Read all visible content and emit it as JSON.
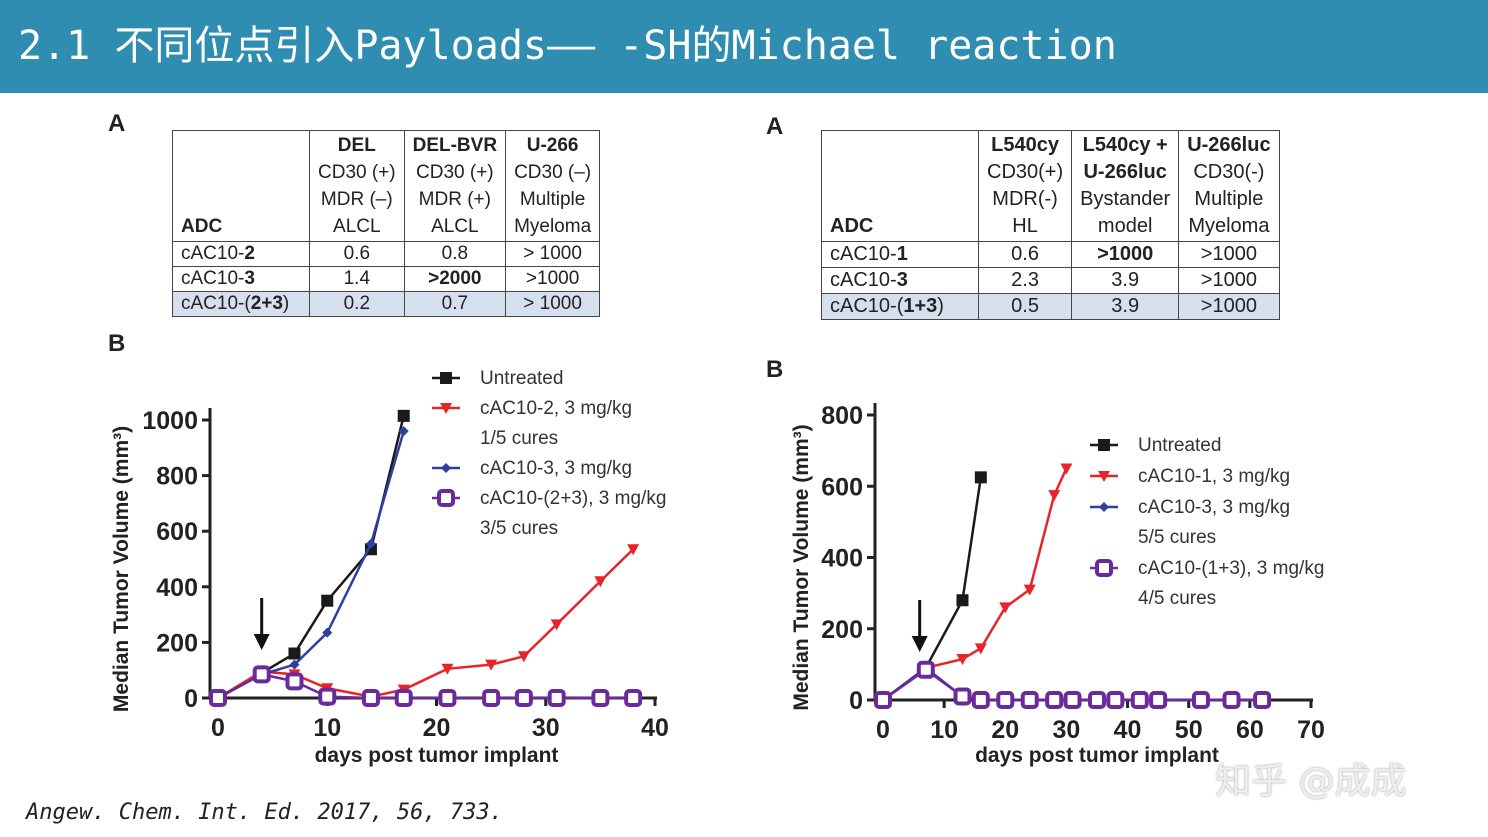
{
  "title": "2.1 不同位点引入Payloads—— -SH的Michael reaction",
  "citation": "Angew. Chem. Int. Ed. 2017, 56, 733.",
  "watermark": "知乎 @成成",
  "left": {
    "label_a": "A",
    "label_b": "B",
    "table": {
      "header": [
        "ADC",
        [
          "DEL",
          "CD30 (+)",
          "MDR (–)",
          "ALCL"
        ],
        [
          "DEL-BVR",
          "CD30 (+)",
          "MDR (+)",
          "ALCL"
        ],
        [
          "U-266",
          "CD30 (–)",
          "Multiple",
          "Myeloma"
        ]
      ],
      "rows": [
        [
          "cAC10-2",
          "0.6",
          "0.8",
          "> 1000"
        ],
        [
          "cAC10-3",
          "1.4",
          ">2000",
          ">1000"
        ],
        [
          "cAC10-(2+3)",
          "0.2",
          "0.7",
          "> 1000"
        ]
      ]
    }
  },
  "right": {
    "label_a": "A",
    "label_b": "B",
    "table": {
      "header": [
        "ADC",
        [
          "L540cy",
          "CD30(+)",
          "MDR(-)",
          "HL"
        ],
        [
          "L540cy +",
          "U-266luc",
          "Bystander",
          "model"
        ],
        [
          "U-266luc",
          "CD30(-)",
          "Multiple",
          "Myeloma"
        ]
      ],
      "rows": [
        [
          "cAC10-1",
          "0.6",
          ">1000",
          ">1000"
        ],
        [
          "cAC10-3",
          "2.3",
          "3.9",
          ">1000"
        ],
        [
          "cAC10-(1+3)",
          "0.5",
          "3.9",
          ">1000"
        ]
      ]
    }
  },
  "chart_data": [
    {
      "type": "line",
      "xlabel": "days post tumor implant",
      "ylabel": "Median Tumor Volume (mm³)",
      "xlim": [
        0,
        40
      ],
      "ylim": [
        0,
        1000
      ],
      "xticks": [
        0,
        10,
        20,
        30,
        40
      ],
      "yticks": [
        0,
        200,
        400,
        600,
        800,
        1000
      ],
      "legend": "top-right",
      "annotation": "arrow at day 4",
      "series": [
        {
          "name": "Untreated",
          "color": "#1a1a1a",
          "marker": "square",
          "x": [
            0,
            4,
            7,
            10,
            14,
            17
          ],
          "y": [
            0,
            90,
            160,
            350,
            535,
            1015
          ]
        },
        {
          "name": "cAC10-2, 3 mg/kg",
          "note": "1/5 cures",
          "color": "#e8232a",
          "marker": "triangle-down",
          "x": [
            0,
            4,
            7,
            10,
            14,
            17,
            21,
            25,
            28,
            31,
            35,
            38
          ],
          "y": [
            0,
            95,
            85,
            35,
            5,
            30,
            105,
            120,
            150,
            265,
            420,
            535
          ]
        },
        {
          "name": "cAC10-3, 3 mg/kg",
          "color": "#2e3f9e",
          "marker": "diamond",
          "x": [
            0,
            4,
            7,
            10,
            14,
            17
          ],
          "y": [
            0,
            85,
            120,
            235,
            555,
            960
          ]
        },
        {
          "name": "cAC10-(2+3), 3 mg/kg",
          "note": "3/5 cures",
          "color": "#6a2a9a",
          "marker": "open-square",
          "x": [
            0,
            4,
            7,
            10,
            14,
            17,
            21,
            25,
            28,
            31,
            35,
            38
          ],
          "y": [
            0,
            85,
            60,
            5,
            0,
            0,
            0,
            0,
            0,
            0,
            0,
            0
          ]
        }
      ]
    },
    {
      "type": "line",
      "xlabel": "days post tumor implant",
      "ylabel": "Median Tumor Volume (mm³)",
      "xlim": [
        0,
        70
      ],
      "ylim": [
        0,
        800
      ],
      "xticks": [
        0,
        10,
        20,
        30,
        40,
        50,
        60,
        70
      ],
      "yticks": [
        0,
        200,
        400,
        600,
        800
      ],
      "legend": "right",
      "annotation": "arrow at day 6",
      "series": [
        {
          "name": "Untreated",
          "color": "#1a1a1a",
          "marker": "square",
          "x": [
            0,
            7,
            13,
            16
          ],
          "y": [
            0,
            90,
            280,
            625
          ]
        },
        {
          "name": "cAC10-1, 3 mg/kg",
          "color": "#e8232a",
          "marker": "triangle-down",
          "x": [
            0,
            7,
            13,
            16,
            20,
            24,
            28,
            30
          ],
          "y": [
            0,
            90,
            115,
            145,
            260,
            310,
            575,
            650
          ]
        },
        {
          "name": "cAC10-3, 3 mg/kg",
          "note": "5/5 cures",
          "color": "#2e3f9e",
          "marker": "diamond",
          "x": [
            0,
            7,
            13,
            16,
            20,
            24,
            28,
            31,
            35,
            38,
            42,
            45,
            52,
            57,
            62
          ],
          "y": [
            0,
            90,
            10,
            0,
            0,
            0,
            0,
            0,
            0,
            0,
            0,
            0,
            0,
            0,
            0
          ]
        },
        {
          "name": "cAC10-(1+3), 3 mg/kg",
          "note": "4/5 cures",
          "color": "#6a2a9a",
          "marker": "open-square",
          "x": [
            0,
            7,
            13,
            16,
            20,
            24,
            28,
            31,
            35,
            38,
            42,
            45,
            52,
            57,
            62
          ],
          "y": [
            0,
            85,
            10,
            0,
            0,
            0,
            0,
            0,
            0,
            0,
            0,
            0,
            0,
            0,
            0
          ]
        }
      ]
    }
  ]
}
